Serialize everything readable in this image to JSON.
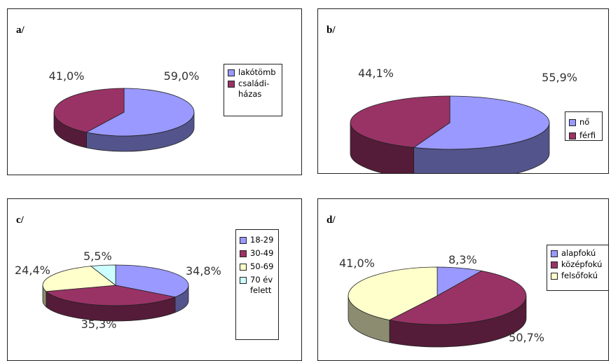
{
  "colors": {
    "lavender": "#9999FF",
    "plum": "#993366",
    "cream": "#FFFFCC",
    "lightcyan": "#CCFFFF"
  },
  "chart_data": [
    {
      "type": "pie",
      "panel_label": "a/",
      "slices": [
        {
          "label": "lakótömb",
          "value": 59.0,
          "value_label": "59,0%",
          "color": "#9999FF"
        },
        {
          "label": "családi-\nházas",
          "value": 41.0,
          "value_label": "41,0%",
          "color": "#993366"
        }
      ],
      "legend": "right"
    },
    {
      "type": "pie",
      "panel_label": "b/",
      "slices": [
        {
          "label": "nő",
          "value": 55.9,
          "value_label": "55,9%",
          "color": "#9999FF"
        },
        {
          "label": "férfi",
          "value": 44.1,
          "value_label": "44,1%",
          "color": "#993366"
        }
      ],
      "legend": "right"
    },
    {
      "type": "pie",
      "panel_label": "c/",
      "slices": [
        {
          "label": "18-29",
          "value": 34.8,
          "value_label": "34,8%",
          "color": "#9999FF"
        },
        {
          "label": "30-49",
          "value": 35.3,
          "value_label": "35,3%",
          "color": "#993366"
        },
        {
          "label": "50-69",
          "value": 24.4,
          "value_label": "24,4%",
          "color": "#FFFFCC"
        },
        {
          "label": "70 év\nfelett",
          "value": 5.5,
          "value_label": "5,5%",
          "color": "#CCFFFF"
        }
      ],
      "legend": "right"
    },
    {
      "type": "pie",
      "panel_label": "d/",
      "slices": [
        {
          "label": "alapfokú",
          "value": 8.3,
          "value_label": "8,3%",
          "color": "#9999FF"
        },
        {
          "label": "középfokú",
          "value": 50.7,
          "value_label": "50,7%",
          "color": "#993366"
        },
        {
          "label": "felsőfokú",
          "value": 41.0,
          "value_label": "41,0%",
          "color": "#FFFFCC"
        }
      ],
      "legend": "right"
    }
  ]
}
